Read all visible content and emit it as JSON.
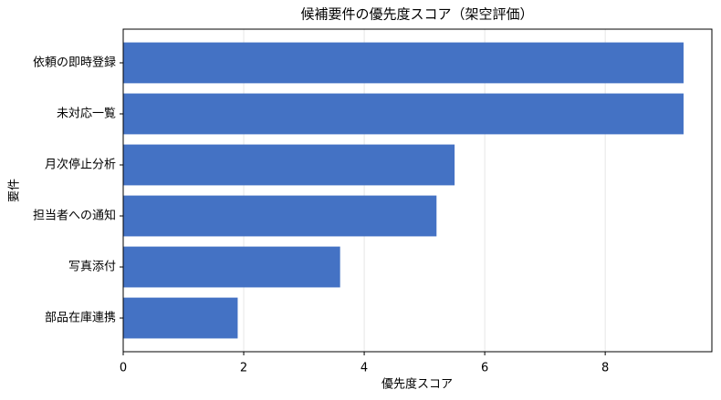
{
  "chart_data": {
    "type": "barh",
    "title": "候補要件の優先度スコア（架空評価）",
    "x_label": "優先度スコア",
    "y_label": "要件",
    "categories": [
      "依頼の即時登録",
      "未対応一覧",
      "月次停止分析",
      "担当者への通知",
      "写真添付",
      "部品在庫連携"
    ],
    "values": [
      9.3,
      9.3,
      5.5,
      5.2,
      3.6,
      1.9
    ],
    "color": "#4472c4",
    "xlim": [
      0,
      9.77
    ],
    "xticks": [
      0,
      2,
      4,
      6,
      8
    ],
    "grid": true
  }
}
